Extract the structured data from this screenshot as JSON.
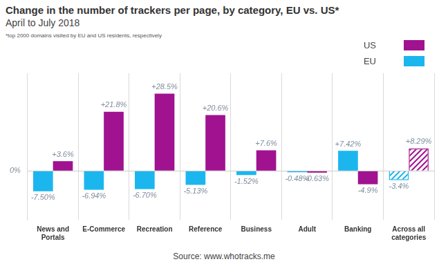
{
  "chart_data": {
    "type": "bar",
    "title": "Change in the number of trackers per page, by category, EU vs. US*",
    "subtitle": "April to July 2018",
    "note": "*top 2000 domains visited by EU and US residents, respectively",
    "source": "Source: www.whotracks.me",
    "categories": [
      "News and Portals",
      "E-Commerce",
      "Recreation",
      "Reference",
      "Business",
      "Adult",
      "Banking",
      "Across all categories"
    ],
    "series": [
      {
        "name": "US",
        "color": "#a0128f",
        "values": [
          3.6,
          21.8,
          28.5,
          20.6,
          7.6,
          -0.63,
          -4.9,
          8.29
        ],
        "value_labels": [
          "+3.6%",
          "+21.8%",
          "+28.5%",
          "+20.6%",
          "+7.6%",
          "-0.63%",
          "-4.9%",
          "+8.29%"
        ]
      },
      {
        "name": "EU",
        "color": "#1cb6ef",
        "values": [
          -7.5,
          -6.94,
          -6.7,
          -5.13,
          -1.52,
          -0.48,
          7.42,
          -3.4
        ],
        "value_labels": [
          "-7.50%",
          "-6.94%",
          "-6.70%",
          "-5.13%",
          "-1.52%",
          "-0.48%",
          "+7.42%",
          "-3.4%"
        ]
      }
    ],
    "ylim": [
      -18,
      36
    ],
    "yticks": [
      {
        "value": 0,
        "label": "0%"
      }
    ],
    "grid": true,
    "legend": "top right",
    "data_labels": true
  }
}
